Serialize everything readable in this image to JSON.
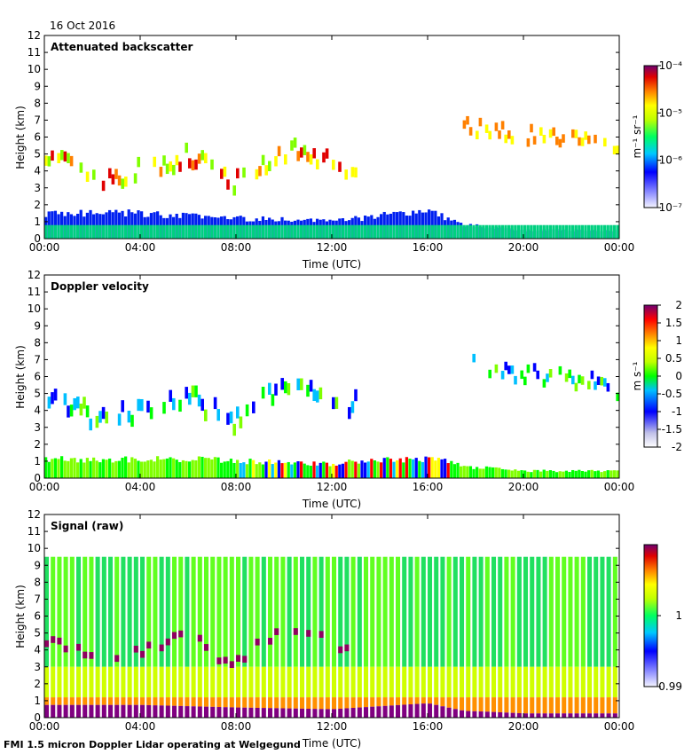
{
  "date_label": "16 Oct 2016",
  "footer": "FMI 1.5 micron Doppler Lidar operating at Welgegund",
  "chart_data": [
    {
      "type": "heatmap",
      "title": "Attenuated backscatter",
      "xlabel": "Time (UTC)",
      "ylabel": "Height (km)",
      "x_ticks": [
        "00:00",
        "04:00",
        "08:00",
        "12:00",
        "16:00",
        "20:00",
        "00:00"
      ],
      "xlim_hours": [
        0,
        24
      ],
      "ylim_km": [
        0,
        12
      ],
      "y_ticks": [
        0,
        1,
        2,
        3,
        4,
        5,
        6,
        7,
        8,
        9,
        10,
        11,
        12
      ],
      "colorbar": {
        "scale": "log",
        "range": [
          1e-07,
          0.0001
        ],
        "unit_label": "m⁻¹ sr⁻¹",
        "tick_labels": [
          "10⁻⁴",
          "10⁻⁵",
          "10⁻⁶",
          "10⁻⁷"
        ]
      },
      "features": {
        "boundary_layer_height_km": {
          "hours": [
            0,
            4,
            8,
            12,
            16,
            17.5,
            18.5,
            20,
            24
          ],
          "values": [
            1.5,
            1.5,
            1.2,
            1.0,
            1.7,
            0.8,
            0.7,
            0.5,
            0.5
          ]
        },
        "mid_cloud_km": {
          "hours": [
            0,
            2.5,
            4,
            6,
            8,
            10,
            12,
            13
          ],
          "values": [
            4.6,
            3.0,
            3.8,
            4.5,
            3.0,
            5.0,
            4.2,
            4.0
          ]
        },
        "upper_cloud_km": {
          "hours": [
            17.5,
            19,
            21,
            23,
            24
          ],
          "values": [
            6.5,
            6.0,
            5.8,
            5.5,
            5.0
          ]
        }
      }
    },
    {
      "type": "heatmap",
      "title": "Doppler velocity",
      "xlabel": "Time (UTC)",
      "ylabel": "Height (km)",
      "x_ticks": [
        "00:00",
        "04:00",
        "08:00",
        "12:00",
        "16:00",
        "20:00",
        "00:00"
      ],
      "xlim_hours": [
        0,
        24
      ],
      "ylim_km": [
        0,
        12
      ],
      "y_ticks": [
        0,
        1,
        2,
        3,
        4,
        5,
        6,
        7,
        8,
        9,
        10,
        11,
        12
      ],
      "colorbar": {
        "scale": "linear",
        "range": [
          -2,
          2
        ],
        "unit_label": "m s⁻¹",
        "tick_labels": [
          "2",
          "1.5",
          "1",
          "0.5",
          "0",
          "-0.5",
          "-1",
          "-1.5",
          "-2"
        ]
      }
    },
    {
      "type": "heatmap",
      "title": "Signal (raw)",
      "xlabel": "Time (UTC)",
      "ylabel": "Height (km)",
      "x_ticks": [
        "00:00",
        "04:00",
        "08:00",
        "12:00",
        "16:00",
        "20:00",
        "00:00"
      ],
      "xlim_hours": [
        0,
        24
      ],
      "ylim_km": [
        0,
        12
      ],
      "y_ticks": [
        0,
        1,
        2,
        3,
        4,
        5,
        6,
        7,
        8,
        9,
        10,
        11,
        12
      ],
      "signal_top_km": 9.5,
      "colorbar": {
        "scale": "linear",
        "range": [
          0.99,
          1.01
        ],
        "unit_label": "",
        "tick_labels": [
          "1",
          "0.99"
        ]
      }
    }
  ]
}
